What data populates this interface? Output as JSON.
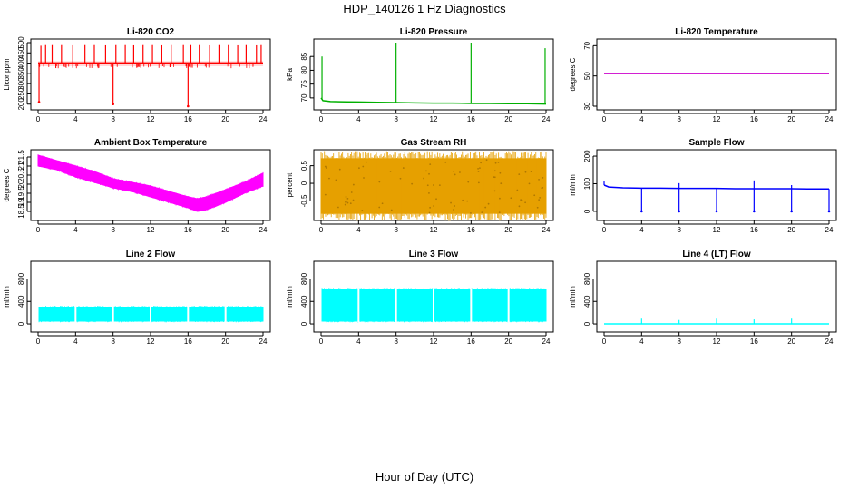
{
  "figure": {
    "title": "HDP_140126  1 Hz Diagnostics",
    "xlabel": "Hour of Day (UTC)"
  },
  "chart_data": [
    {
      "type": "line",
      "title": "Li-820 CO2",
      "ylabel": "Licor ppm",
      "color": "#ff0000",
      "xlim": [
        0,
        24
      ],
      "ylim": [
        190,
        500
      ],
      "xticks": [
        0,
        4,
        8,
        12,
        16,
        20,
        24
      ],
      "yticks": [
        200,
        250,
        300,
        350,
        400,
        450,
        500
      ],
      "x": [
        0,
        1,
        2,
        3,
        4,
        5,
        6,
        7,
        8,
        9,
        10,
        11,
        12,
        13,
        14,
        15,
        16,
        17,
        18,
        19,
        20,
        21,
        22,
        23,
        24
      ],
      "y": [
        400,
        400,
        400,
        400,
        400,
        400,
        400,
        400,
        400,
        400,
        400,
        400,
        400,
        400,
        400,
        400,
        400,
        400,
        400,
        400,
        400,
        400,
        400,
        400,
        400
      ],
      "envelope": [
        385,
        410
      ],
      "spikes_high": [
        [
          0.3,
          485
        ],
        [
          0.8,
          488
        ],
        [
          1.5,
          488
        ],
        [
          2.5,
          488
        ],
        [
          3.7,
          487
        ],
        [
          5,
          488
        ],
        [
          6,
          488
        ],
        [
          7.2,
          487
        ],
        [
          8.3,
          488
        ],
        [
          9.3,
          488
        ],
        [
          10.2,
          487
        ],
        [
          11.2,
          488
        ],
        [
          12.2,
          488
        ],
        [
          13.2,
          487
        ],
        [
          14.2,
          488
        ],
        [
          15.5,
          488
        ],
        [
          16.3,
          488
        ],
        [
          17.2,
          488
        ],
        [
          18.3,
          487
        ],
        [
          19.3,
          488
        ],
        [
          20.3,
          488
        ],
        [
          21.3,
          487
        ],
        [
          22.2,
          488
        ],
        [
          23.3,
          487
        ],
        [
          23.8,
          488
        ]
      ],
      "spikes_low": [
        [
          0.1,
          210
        ],
        [
          8,
          200
        ],
        [
          16,
          190
        ]
      ]
    },
    {
      "type": "line",
      "title": "Li-820 Pressure",
      "ylabel": "kPa",
      "color": "#00b000",
      "xlim": [
        0,
        24
      ],
      "ylim": [
        67,
        90
      ],
      "xticks": [
        0,
        4,
        8,
        12,
        16,
        20,
        24
      ],
      "yticks": [
        70,
        75,
        80,
        85
      ],
      "x": [
        0,
        0.2,
        1,
        2,
        4,
        6,
        8,
        10,
        12,
        14,
        16,
        18,
        20,
        22,
        24
      ],
      "y": [
        70,
        69,
        68.7,
        68.6,
        68.5,
        68.4,
        68.3,
        68.2,
        68.1,
        68.1,
        68,
        68,
        67.9,
        67.9,
        67.8
      ],
      "spikes_high": [
        [
          0.1,
          85
        ],
        [
          8,
          90
        ],
        [
          16,
          90
        ],
        [
          23.9,
          88
        ]
      ]
    },
    {
      "type": "line",
      "title": "Li-820 Temperature",
      "ylabel": "degrees C",
      "color": "#cc00cc",
      "xlim": [
        0,
        24
      ],
      "ylim": [
        30,
        72
      ],
      "xticks": [
        0,
        4,
        8,
        12,
        16,
        20,
        24
      ],
      "yticks": [
        30,
        50,
        70
      ],
      "x": [
        0,
        24
      ],
      "y": [
        51.5,
        51.5
      ]
    },
    {
      "type": "area",
      "title": "Ambient Box Temperature",
      "ylabel": "degrees C",
      "color": "#ff00ff",
      "xlim": [
        0,
        24
      ],
      "ylim": [
        18.2,
        21.7
      ],
      "xticks": [
        0,
        4,
        8,
        12,
        16,
        20,
        24
      ],
      "yticks": [
        18.5,
        19,
        19.5,
        20,
        20.5,
        21,
        21.5
      ],
      "x": [
        0,
        2,
        4,
        6,
        8,
        10,
        12,
        14,
        16,
        17,
        18,
        20,
        22,
        24
      ],
      "upper": [
        21.6,
        21.3,
        21.0,
        20.7,
        20.3,
        20.1,
        19.9,
        19.6,
        19.3,
        19.2,
        19.3,
        19.7,
        20.1,
        20.6
      ],
      "lower": [
        21.0,
        20.8,
        20.4,
        20.1,
        19.8,
        19.6,
        19.3,
        19.0,
        18.7,
        18.5,
        18.6,
        19.0,
        19.5,
        19.9
      ]
    },
    {
      "type": "area",
      "title": "Gas Stream RH",
      "ylabel": "percent",
      "color": "#e6a000",
      "xlim": [
        0,
        24
      ],
      "ylim": [
        -0.95,
        0.85
      ],
      "xticks": [
        0,
        4,
        8,
        12,
        16,
        20,
        24
      ],
      "yticks": [
        -0.5,
        0,
        0.5
      ],
      "x": [
        0,
        24
      ],
      "upper": [
        0.7,
        0.7
      ],
      "lower": [
        -0.85,
        -0.85
      ]
    },
    {
      "type": "line",
      "title": "Sample Flow",
      "ylabel": "ml/min",
      "color": "#0000ff",
      "xlim": [
        0,
        24
      ],
      "ylim": [
        -20,
        210
      ],
      "xticks": [
        0,
        4,
        8,
        12,
        16,
        20,
        24
      ],
      "yticks": [
        0,
        100,
        200
      ],
      "x": [
        0,
        0.5,
        2,
        4,
        6,
        8,
        10,
        12,
        14,
        16,
        18,
        20,
        22,
        24
      ],
      "y": [
        95,
        88,
        85,
        84,
        84,
        83,
        83,
        83,
        82,
        82,
        82,
        82,
        81,
        81
      ],
      "spikes_high": [
        [
          0,
          108
        ],
        [
          8,
          102
        ],
        [
          16,
          112
        ],
        [
          20,
          95
        ]
      ],
      "spikes_low": [
        [
          4,
          0
        ],
        [
          8,
          0
        ],
        [
          12,
          0
        ],
        [
          16,
          0
        ],
        [
          20,
          0
        ],
        [
          24,
          0
        ]
      ]
    },
    {
      "type": "area",
      "title": "Line 2 Flow",
      "ylabel": "ml/min",
      "color": "#00ffff",
      "xlim": [
        0,
        24
      ],
      "ylim": [
        -80,
        1050
      ],
      "xticks": [
        0,
        4,
        8,
        12,
        16,
        20,
        24
      ],
      "yticks": [
        0,
        400,
        800
      ],
      "x": [
        0.1,
        24
      ],
      "upper": [
        300,
        300
      ],
      "lower": [
        50,
        50
      ],
      "gaps": [
        4,
        8,
        12,
        16,
        20
      ]
    },
    {
      "type": "area",
      "title": "Line 3 Flow",
      "ylabel": "ml/min",
      "color": "#00ffff",
      "xlim": [
        0,
        24
      ],
      "ylim": [
        -80,
        1050
      ],
      "xticks": [
        0,
        4,
        8,
        12,
        16,
        20,
        24
      ],
      "yticks": [
        0,
        400,
        800
      ],
      "x": [
        0.1,
        24
      ],
      "upper": [
        620,
        620
      ],
      "lower": [
        50,
        50
      ],
      "gaps": [
        4,
        8,
        12,
        16,
        20
      ]
    },
    {
      "type": "line",
      "title": "Line 4 (LT) Flow",
      "ylabel": "ml/min",
      "color": "#00ffff",
      "xlim": [
        0,
        24
      ],
      "ylim": [
        -80,
        1050
      ],
      "xticks": [
        0,
        4,
        8,
        12,
        16,
        20,
        24
      ],
      "yticks": [
        0,
        400,
        800
      ],
      "x": [
        0,
        24
      ],
      "y": [
        0,
        0
      ],
      "spikes_high": [
        [
          4,
          110
        ],
        [
          8,
          70
        ],
        [
          12,
          110
        ],
        [
          16,
          80
        ],
        [
          20,
          110
        ]
      ]
    }
  ]
}
